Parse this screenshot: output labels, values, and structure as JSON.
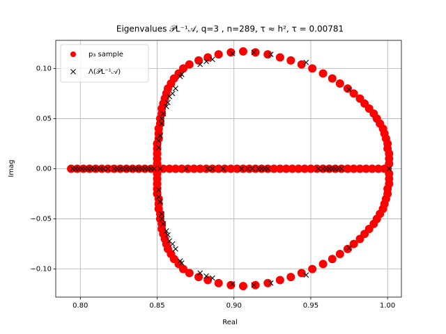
{
  "chart_data": {
    "type": "scatter",
    "title": "Eigenvalues 𝒫L⁻¹𝒜, q=3 , n=289, τ ≈ h², τ = 0.00781",
    "xlabel": "Real",
    "ylabel": "Imag",
    "xlim": [
      0.784,
      1.009
    ],
    "ylim": [
      -0.128,
      0.128
    ],
    "xticks": [
      {
        "value": 0.8,
        "label": "0.80"
      },
      {
        "value": 0.85,
        "label": "0.85"
      },
      {
        "value": 0.9,
        "label": "0.90"
      },
      {
        "value": 0.95,
        "label": "0.95"
      },
      {
        "value": 1.0,
        "label": "1.00"
      }
    ],
    "yticks": [
      {
        "value": -0.1,
        "label": "−0.10"
      },
      {
        "value": -0.05,
        "label": "−0.05"
      },
      {
        "value": 0,
        "label": "0.00"
      },
      {
        "value": 0.05,
        "label": "0.05"
      },
      {
        "value": 0.1,
        "label": "0.10"
      }
    ],
    "grid": true,
    "legend": "upper left",
    "series": [
      {
        "name": "p₃ sample",
        "color": "#ff0000",
        "marker": "o",
        "x": [
          1.0,
          1.001,
          1.001,
          1.001,
          1.0,
          1.0,
          0.999,
          0.998,
          0.997,
          0.995,
          0.993,
          0.991,
          0.988,
          0.985,
          0.982,
          0.978,
          0.974,
          0.969,
          0.964,
          0.958,
          0.951,
          0.944,
          0.937,
          0.93,
          0.922,
          0.914,
          0.906,
          0.898,
          0.89,
          0.883,
          0.877,
          0.871,
          0.867,
          0.864,
          0.861,
          0.859,
          0.857,
          0.856,
          0.855,
          0.854,
          0.853,
          0.853,
          0.852,
          0.852,
          0.851,
          0.851,
          0.851,
          0.85,
          0.85,
          0.85,
          0.85,
          0.85,
          0.85,
          1.001,
          1.001,
          1.001,
          1.0,
          1.0,
          0.999,
          0.998,
          0.997,
          0.995,
          0.993,
          0.991,
          0.988,
          0.985,
          0.982,
          0.978,
          0.974,
          0.969,
          0.964,
          0.958,
          0.951,
          0.944,
          0.937,
          0.93,
          0.922,
          0.914,
          0.906,
          0.898,
          0.89,
          0.883,
          0.877,
          0.871,
          0.867,
          0.864,
          0.861,
          0.859,
          0.857,
          0.856,
          0.855,
          0.854,
          0.853,
          0.853,
          0.852,
          0.852,
          0.851,
          0.851,
          0.851,
          0.85,
          0.85,
          0.85,
          0.85,
          0.85,
          0.794,
          0.798,
          0.802,
          0.806,
          0.81,
          0.814,
          0.818,
          0.822,
          0.826,
          0.83,
          0.834,
          0.838,
          0.842,
          0.846,
          0.85,
          0.854,
          0.858,
          0.862,
          0.866,
          0.87,
          0.874,
          0.878,
          0.882,
          0.886,
          0.89,
          0.894,
          0.898,
          0.902,
          0.906,
          0.91,
          0.914,
          0.918,
          0.922,
          0.926,
          0.93,
          0.934,
          0.938,
          0.942,
          0.946,
          0.95,
          0.954,
          0.958,
          0.962,
          0.966,
          0.97,
          0.974,
          0.978,
          0.982,
          0.986,
          0.99,
          0.994,
          0.998
        ],
        "y": [
          0,
          0.005,
          0.01,
          0.015,
          0.02,
          0.025,
          0.03,
          0.035,
          0.04,
          0.045,
          0.05,
          0.055,
          0.06,
          0.065,
          0.07,
          0.075,
          0.08,
          0.085,
          0.09,
          0.095,
          0.1,
          0.104,
          0.108,
          0.111,
          0.114,
          0.116,
          0.117,
          0.116,
          0.114,
          0.111,
          0.108,
          0.104,
          0.1,
          0.095,
          0.09,
          0.085,
          0.08,
          0.075,
          0.07,
          0.065,
          0.06,
          0.055,
          0.05,
          0.045,
          0.04,
          0.035,
          0.03,
          0.025,
          0.02,
          0.015,
          0.01,
          0.005,
          0,
          -0.005,
          -0.01,
          -0.015,
          -0.02,
          -0.025,
          -0.03,
          -0.035,
          -0.04,
          -0.045,
          -0.05,
          -0.055,
          -0.06,
          -0.065,
          -0.07,
          -0.075,
          -0.08,
          -0.085,
          -0.09,
          -0.095,
          -0.1,
          -0.104,
          -0.108,
          -0.111,
          -0.114,
          -0.116,
          -0.117,
          -0.116,
          -0.114,
          -0.111,
          -0.108,
          -0.104,
          -0.1,
          -0.095,
          -0.09,
          -0.085,
          -0.08,
          -0.075,
          -0.07,
          -0.065,
          -0.06,
          -0.055,
          -0.05,
          -0.045,
          -0.04,
          -0.035,
          -0.03,
          -0.025,
          -0.02,
          -0.015,
          -0.01,
          -0.005,
          0,
          0,
          0,
          0,
          0,
          0,
          0,
          0,
          0,
          0,
          0,
          0,
          0,
          0,
          0,
          0,
          0,
          0,
          0,
          0,
          0,
          0,
          0,
          0,
          0,
          0,
          0,
          0,
          0,
          0,
          0,
          0,
          0,
          0,
          0,
          0,
          0,
          0,
          0,
          0,
          0,
          0,
          0,
          0,
          0,
          0,
          0,
          0,
          0,
          0,
          0,
          0
        ]
      },
      {
        "name": "Λ(𝒫L⁻¹𝒜)",
        "color": "#000000",
        "marker": "x",
        "x": [
          0.851,
          0.851,
          0.852,
          0.853,
          0.853,
          0.854,
          0.856,
          0.857,
          0.858,
          0.86,
          0.862,
          0.865,
          0.866,
          0.878,
          0.882,
          0.886,
          0.899,
          0.913,
          0.924,
          0.947,
          0.975,
          0.851,
          0.851,
          0.852,
          0.853,
          0.853,
          0.854,
          0.856,
          0.857,
          0.858,
          0.86,
          0.862,
          0.865,
          0.866,
          0.878,
          0.882,
          0.886,
          0.899,
          0.913,
          0.924,
          0.947,
          0.975,
          1.001,
          0.795,
          0.797,
          0.799,
          0.801,
          0.803,
          0.805,
          0.807,
          0.809,
          0.811,
          0.813,
          0.815,
          0.818,
          0.822,
          0.824,
          0.826,
          0.828,
          0.83,
          0.832,
          0.834,
          0.836,
          0.838,
          0.84,
          0.842,
          0.844,
          0.846,
          0.848,
          0.852,
          0.869,
          0.883,
          0.886,
          0.893,
          0.905,
          0.909,
          0.912,
          0.916,
          0.918,
          0.92,
          0.922,
          0.955,
          0.958,
          0.96,
          0.962,
          0.964,
          0.966,
          0.968,
          0.97
        ],
        "y": [
          0.021,
          0.028,
          0.033,
          0.045,
          0.05,
          0.055,
          0.062,
          0.066,
          0.072,
          0.075,
          0.08,
          0.092,
          0.094,
          0.104,
          0.107,
          0.109,
          0.115,
          0.116,
          0.114,
          0.106,
          0.079,
          -0.021,
          -0.028,
          -0.033,
          -0.045,
          -0.05,
          -0.055,
          -0.062,
          -0.066,
          -0.072,
          -0.075,
          -0.08,
          -0.092,
          -0.094,
          -0.104,
          -0.107,
          -0.109,
          -0.115,
          -0.116,
          -0.114,
          -0.106,
          -0.079,
          0,
          0,
          0,
          0,
          0,
          0,
          0,
          0,
          0,
          0,
          0,
          0,
          0,
          0,
          0,
          0,
          0,
          0,
          0,
          0,
          0,
          0,
          0,
          0,
          0,
          0,
          0,
          0,
          0,
          0,
          0,
          0,
          0,
          0,
          0,
          0,
          0,
          0,
          0,
          0,
          0,
          0,
          0,
          0,
          0,
          0,
          0
        ]
      }
    ]
  }
}
